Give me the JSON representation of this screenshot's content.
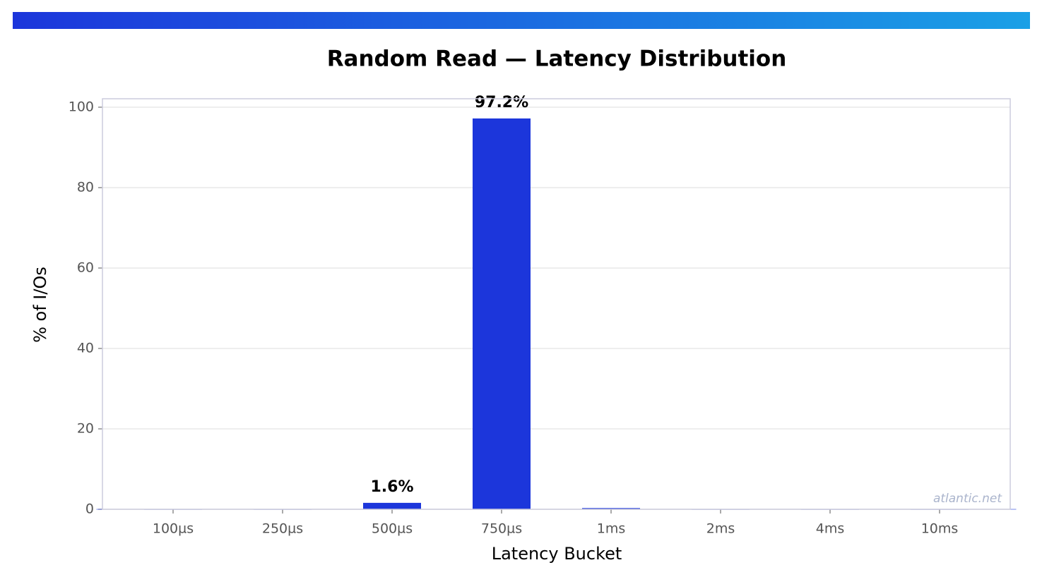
{
  "chart_data": {
    "type": "bar",
    "title": "Random Read — Latency Distribution",
    "x_label": "Latency Bucket",
    "y_label": "% of I/Os",
    "watermark": "atlantic.net",
    "categories": [
      null,
      "100µs",
      null,
      "250µs",
      null,
      "500µs",
      null,
      "750µs",
      null,
      "1ms",
      null,
      "2ms",
      null,
      "4ms",
      null,
      "10ms",
      null
    ],
    "values": [
      0.05,
      0,
      0.05,
      0,
      0.05,
      1.6,
      0.05,
      97.2,
      0.05,
      0.3,
      0.05,
      0,
      0.05,
      0,
      0.05,
      0,
      0.05
    ],
    "value_labels": [
      null,
      null,
      null,
      null,
      null,
      "1.6%",
      null,
      "97.2%",
      null,
      null,
      null,
      null,
      null,
      null,
      null,
      null,
      null
    ],
    "color": "#1c36db",
    "ylim": [
      0,
      102.1
    ],
    "yticks": [
      0,
      20,
      40,
      60,
      80,
      100
    ],
    "grid": true
  }
}
